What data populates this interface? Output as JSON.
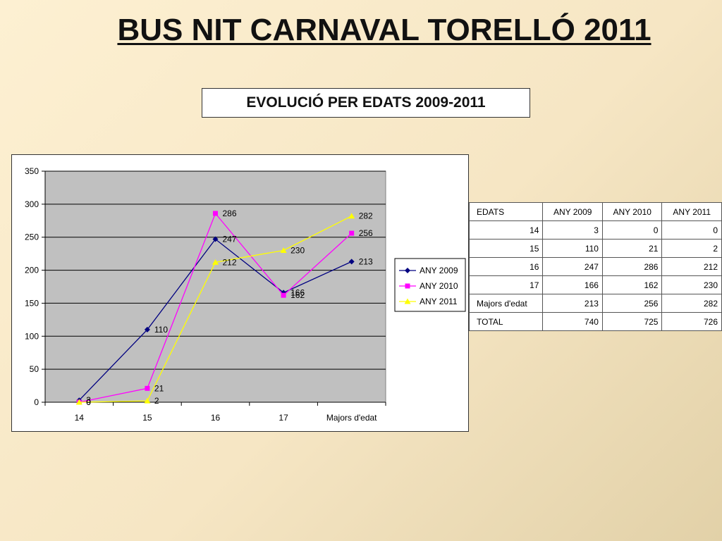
{
  "title": "BUS NIT CARNAVAL TORELLÓ 2011",
  "subtitle": "EVOLUCIÓ PER EDATS 2009-2011",
  "chart_data": {
    "type": "line",
    "categories": [
      "14",
      "15",
      "16",
      "17",
      "Majors d'edat"
    ],
    "ylim": [
      0,
      350
    ],
    "yticks": [
      0,
      50,
      100,
      150,
      200,
      250,
      300,
      350
    ],
    "grid": true,
    "legend_position": "right",
    "series": [
      {
        "name": "ANY 2009",
        "values": [
          3,
          110,
          247,
          166,
          213
        ],
        "color": "#000080",
        "marker": "diamond"
      },
      {
        "name": "ANY 2010",
        "values": [
          0,
          21,
          286,
          162,
          256
        ],
        "color": "#ff00ff",
        "marker": "square"
      },
      {
        "name": "ANY 2011",
        "values": [
          0,
          2,
          212,
          230,
          282
        ],
        "color": "#ffff00",
        "marker": "triangle"
      }
    ],
    "colors": {
      "plot_bg": "#c0c0c0",
      "grid": "#000000"
    }
  },
  "table": {
    "headers": [
      "EDATS",
      "ANY 2009",
      "ANY 2010",
      "ANY 2011"
    ],
    "rows": [
      [
        "14",
        "3",
        "0",
        "0"
      ],
      [
        "15",
        "110",
        "21",
        "2"
      ],
      [
        "16",
        "247",
        "286",
        "212"
      ],
      [
        "17",
        "166",
        "162",
        "230"
      ],
      [
        "Majors d'edat",
        "213",
        "256",
        "282"
      ],
      [
        "TOTAL",
        "740",
        "725",
        "726"
      ]
    ]
  }
}
